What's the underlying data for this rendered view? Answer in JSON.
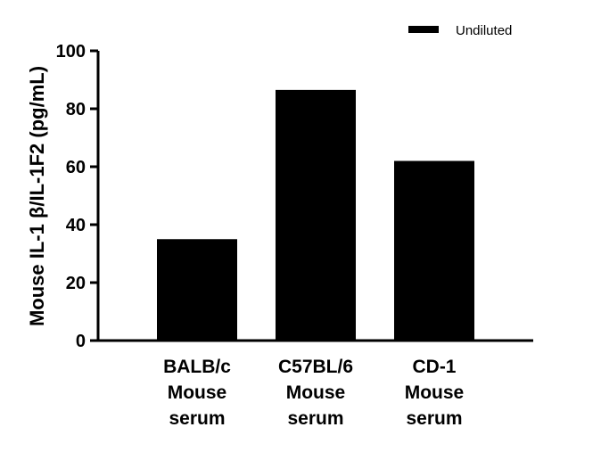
{
  "chart_data": {
    "type": "bar",
    "categories": [
      [
        "BALB/c",
        "Mouse",
        "serum"
      ],
      [
        "C57BL/6",
        "Mouse",
        "serum"
      ],
      [
        "CD-1",
        "Mouse",
        "serum"
      ]
    ],
    "series": [
      {
        "name": "Undiluted",
        "values": [
          35,
          86.5,
          62
        ],
        "color": "#000000"
      }
    ],
    "title": "",
    "xlabel": "",
    "ylabel": "Mouse IL-1 β/IL-1F2 (pg/mL)",
    "ylim": [
      0,
      100
    ],
    "yticks": [
      0,
      20,
      40,
      60,
      80,
      100
    ],
    "grid": false,
    "legend_position": "top-right"
  }
}
